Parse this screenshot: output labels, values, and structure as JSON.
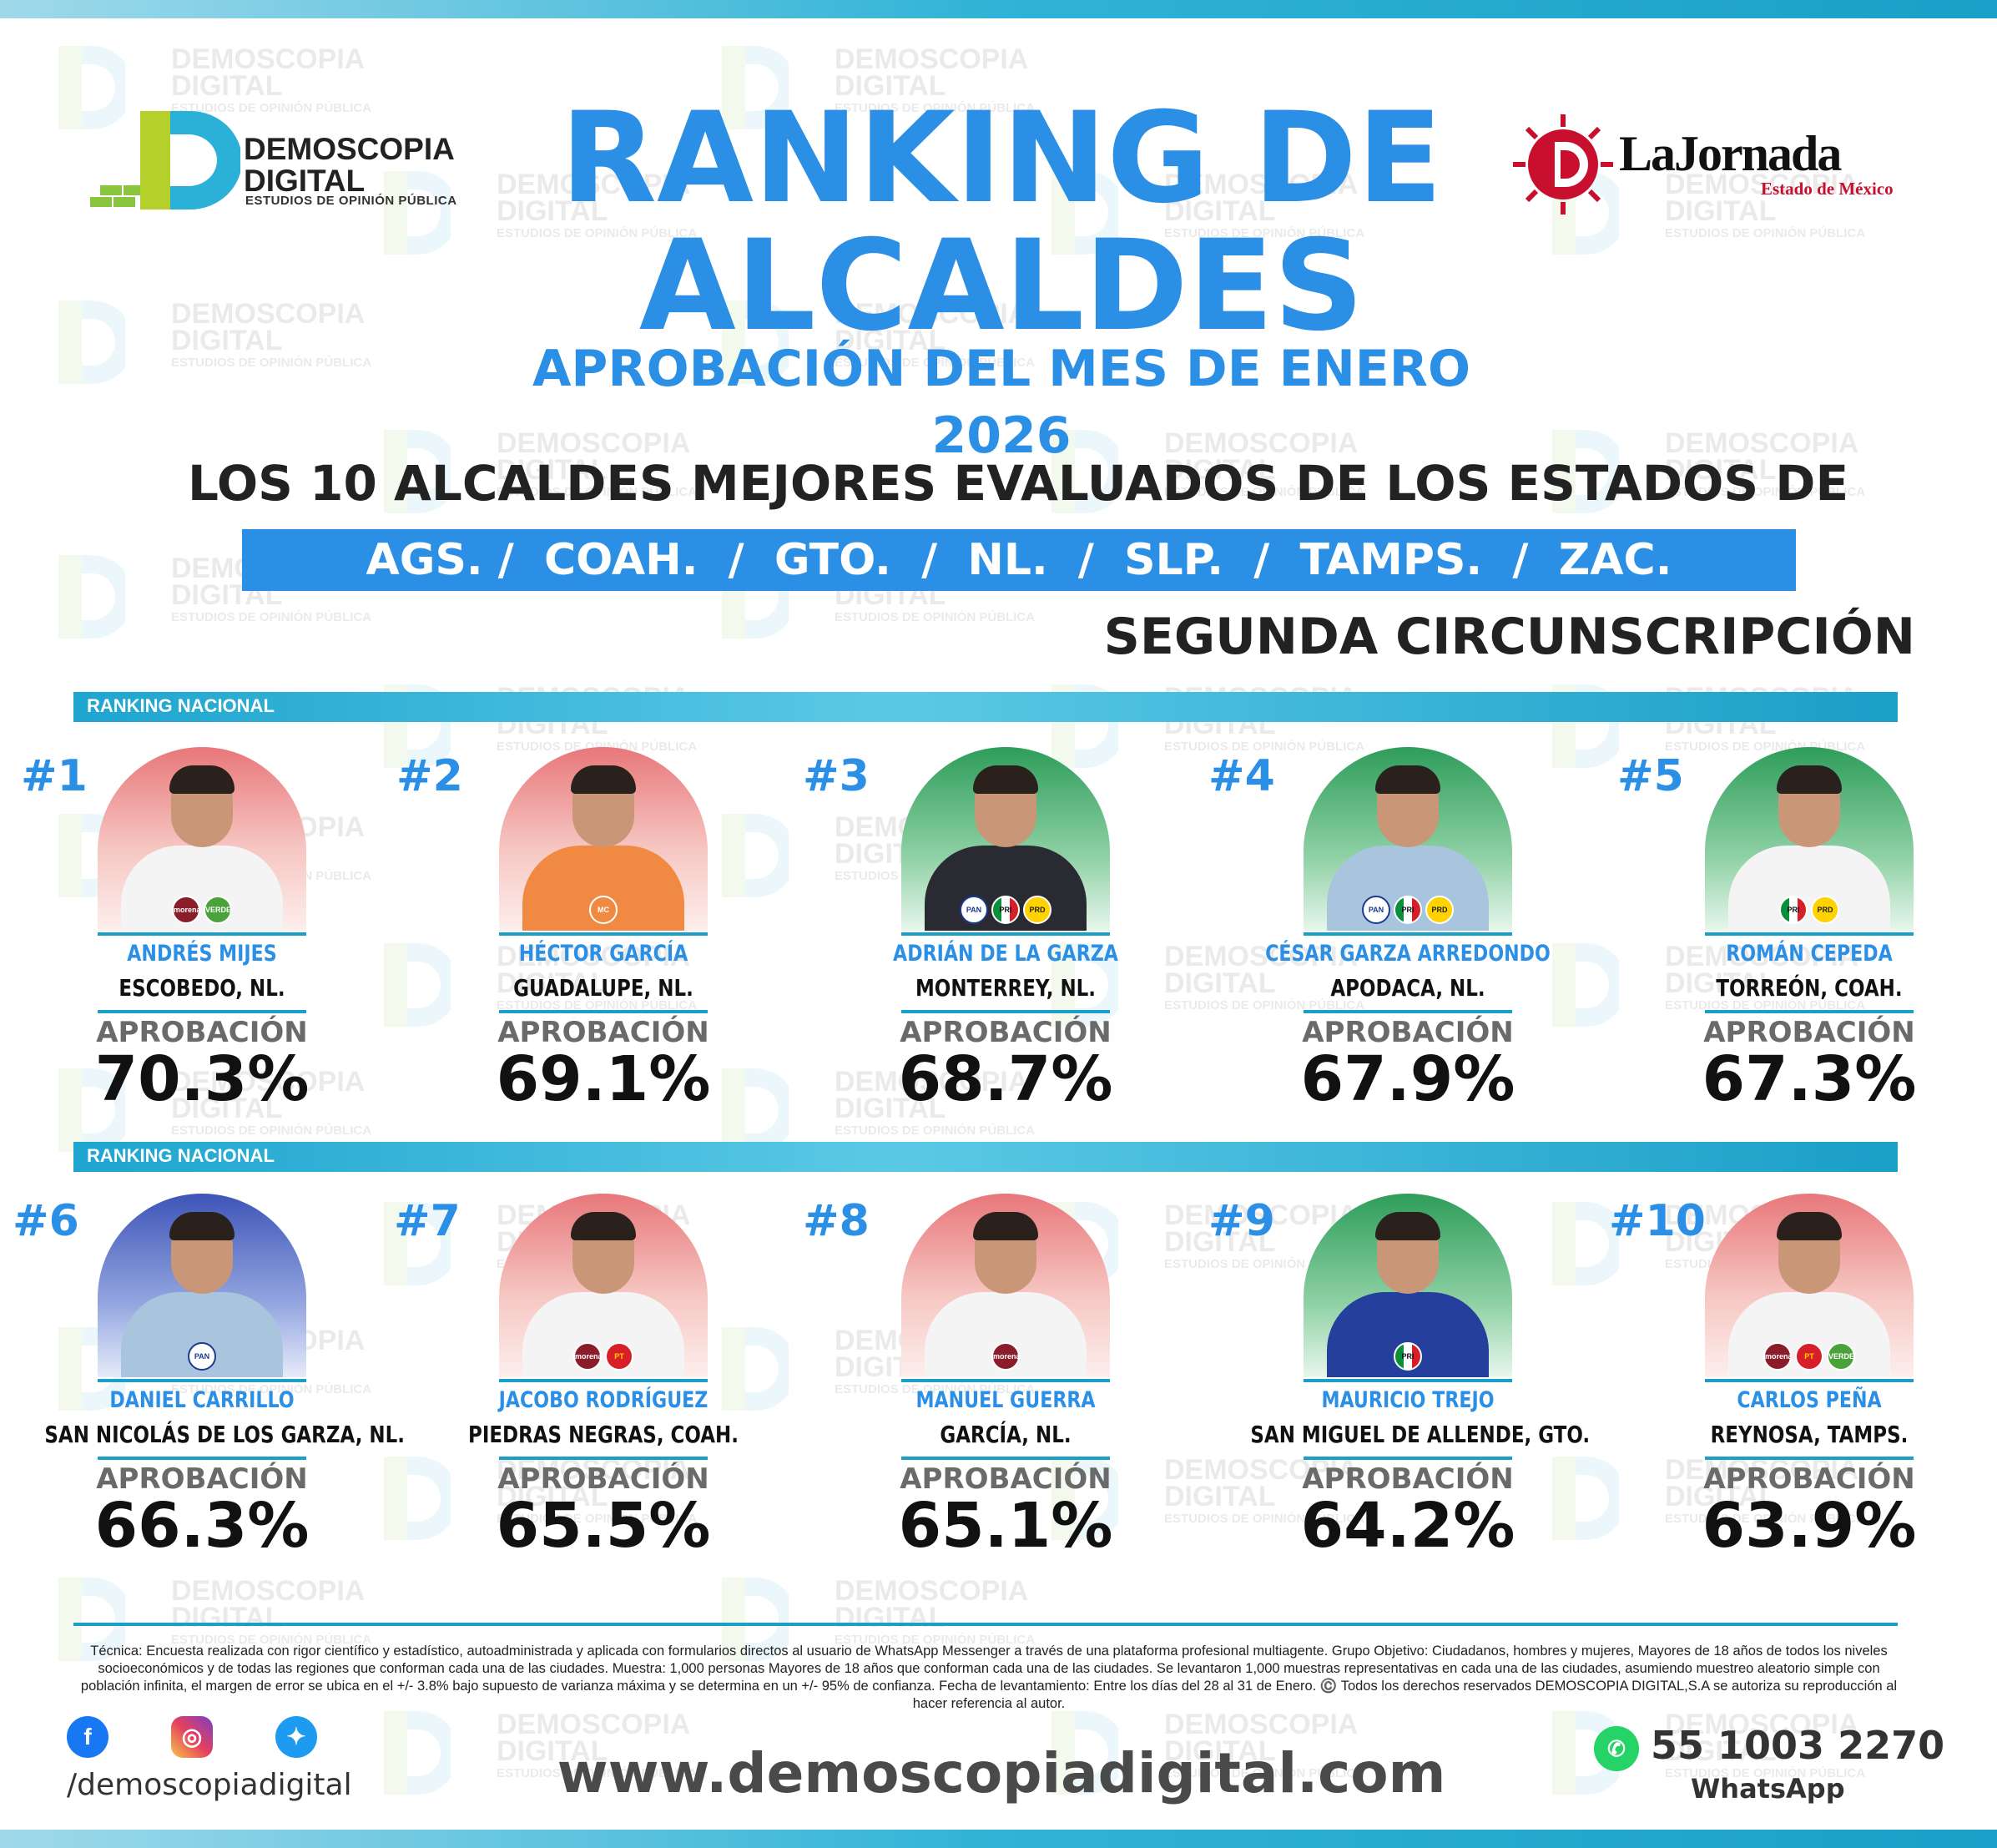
{
  "brand": {
    "name_line1": "DEMOSCOPIA",
    "name_line2": "DIGITAL",
    "tagline": "ESTUDIOS DE OPINIÓN PÚBLICA",
    "watermark_line1": "DEMOSCOPIA",
    "watermark_line2": "DIGITAL",
    "watermark_sub": "ESTUDIOS DE OPINIÓN PÚBLICA"
  },
  "partner": {
    "name": "LaJornada",
    "sub": "Estado de México"
  },
  "header": {
    "title_line1": "RANKING DE",
    "title_line2": "ALCALDES",
    "subtitle": "APROBACIÓN DEL MES DE ENERO 2026",
    "heading": "LOS 10 ALCALDES MEJORES EVALUADOS DE LOS ESTADOS DE",
    "states": "AGS. /  COAH.  /  GTO.  /  NL.  /  SLP.  /  TAMPS.  /  ZAC.",
    "region": "SEGUNDA CIRCUNSCRIPCIÓN"
  },
  "section_label": "RANKING NACIONAL",
  "approval_label": "APROBACIÓN",
  "mayors": [
    {
      "rank": "#1",
      "name": "ANDRÉS MIJES",
      "city": "ESCOBEDO, NL.",
      "approval": "70.3%",
      "bg": "red",
      "shirt": "w",
      "parties": [
        "morena",
        "verde"
      ]
    },
    {
      "rank": "#2",
      "name": "HÉCTOR GARCÍA",
      "city": "GUADALUPE, NL.",
      "approval": "69.1%",
      "bg": "red",
      "shirt": "o",
      "parties": [
        "mc"
      ]
    },
    {
      "rank": "#3",
      "name": "ADRIÁN DE LA GARZA",
      "city": "MONTERREY, NL.",
      "approval": "68.7%",
      "bg": "green",
      "shirt": "d",
      "parties": [
        "pan",
        "pri",
        "prd"
      ]
    },
    {
      "rank": "#4",
      "name": "CÉSAR GARZA ARREDONDO",
      "city": "APODACA, NL.",
      "approval": "67.9%",
      "bg": "green",
      "shirt": "b",
      "parties": [
        "pan",
        "pri",
        "prd"
      ]
    },
    {
      "rank": "#5",
      "name": "ROMÁN CEPEDA",
      "city": "TORREÓN, COAH.",
      "approval": "67.3%",
      "bg": "green",
      "shirt": "w",
      "parties": [
        "pri",
        "prd"
      ]
    },
    {
      "rank": "#6",
      "name": "DANIEL CARRILLO",
      "city": "SAN NICOLÁS DE LOS GARZA, NL.",
      "approval": "66.3%",
      "bg": "blue",
      "shirt": "b",
      "parties": [
        "pan"
      ]
    },
    {
      "rank": "#7",
      "name": "JACOBO RODRÍGUEZ",
      "city": "PIEDRAS NEGRAS, COAH.",
      "approval": "65.5%",
      "bg": "red",
      "shirt": "w",
      "parties": [
        "morena",
        "pt"
      ]
    },
    {
      "rank": "#8",
      "name": "MANUEL GUERRA",
      "city": "GARCÍA, NL.",
      "approval": "65.1%",
      "bg": "red",
      "shirt": "w",
      "parties": [
        "morena"
      ]
    },
    {
      "rank": "#9",
      "name": "MAURICIO TREJO",
      "city": "SAN MIGUEL DE ALLENDE, GTO.",
      "approval": "64.2%",
      "bg": "green",
      "shirt": "n",
      "parties": [
        "pri"
      ]
    },
    {
      "rank": "#10",
      "name": "CARLOS PEÑA",
      "city": "REYNOSA, TAMPS.",
      "approval": "63.9%",
      "bg": "red",
      "shirt": "w",
      "parties": [
        "morena",
        "pt",
        "verde"
      ]
    }
  ],
  "party_labels": {
    "morena": "morena",
    "verde": "VERDE",
    "pan": "PAN",
    "pri": "PRI",
    "prd": "PRD",
    "mc": "MC",
    "pt": "PT"
  },
  "footer": {
    "tecnica": "Técnica: Encuesta realizada con rigor científico y estadístico, autoadministrada y aplicada con formularios directos al usuario de WhatsApp Messenger a través de una plataforma profesional multiagente. Grupo Objetivo: Ciudadanos, hombres y mujeres, Mayores de 18 años de todos los niveles socioeconómicos y de todas las regiones que conforman cada una de las ciudades. Muestra: 1,000 personas Mayores de 18 años que conforman cada una de las ciudades. Se levantaron 1,000 muestras representativas en cada una de las ciudades, asumiendo muestreo aleatorio simple con población infinita, el margen de error se ubica en el +/- 3.8% bajo supuesto de varianza máxima y se determina en un +/- 95% de confianza. Fecha de levantamiento: Entre los días del 28 al 31 de Enero. ©️ Todos los derechos reservados DEMOSCOPIA DIGITAL,S.A se autoriza su reproducción al hacer referencia al autor.",
    "handle": "/demoscopiadigital",
    "website": "www.demoscopiadigital.com",
    "phone": "55 1003 2270",
    "whatsapp_label": "WhatsApp"
  },
  "colors": {
    "accent": "#2b8fe6",
    "bar": "#1a9fc8",
    "dark": "#222222"
  },
  "icons": {
    "facebook": "facebook-icon",
    "instagram": "instagram-icon",
    "twitter": "twitter-icon",
    "whatsapp": "whatsapp-icon"
  }
}
